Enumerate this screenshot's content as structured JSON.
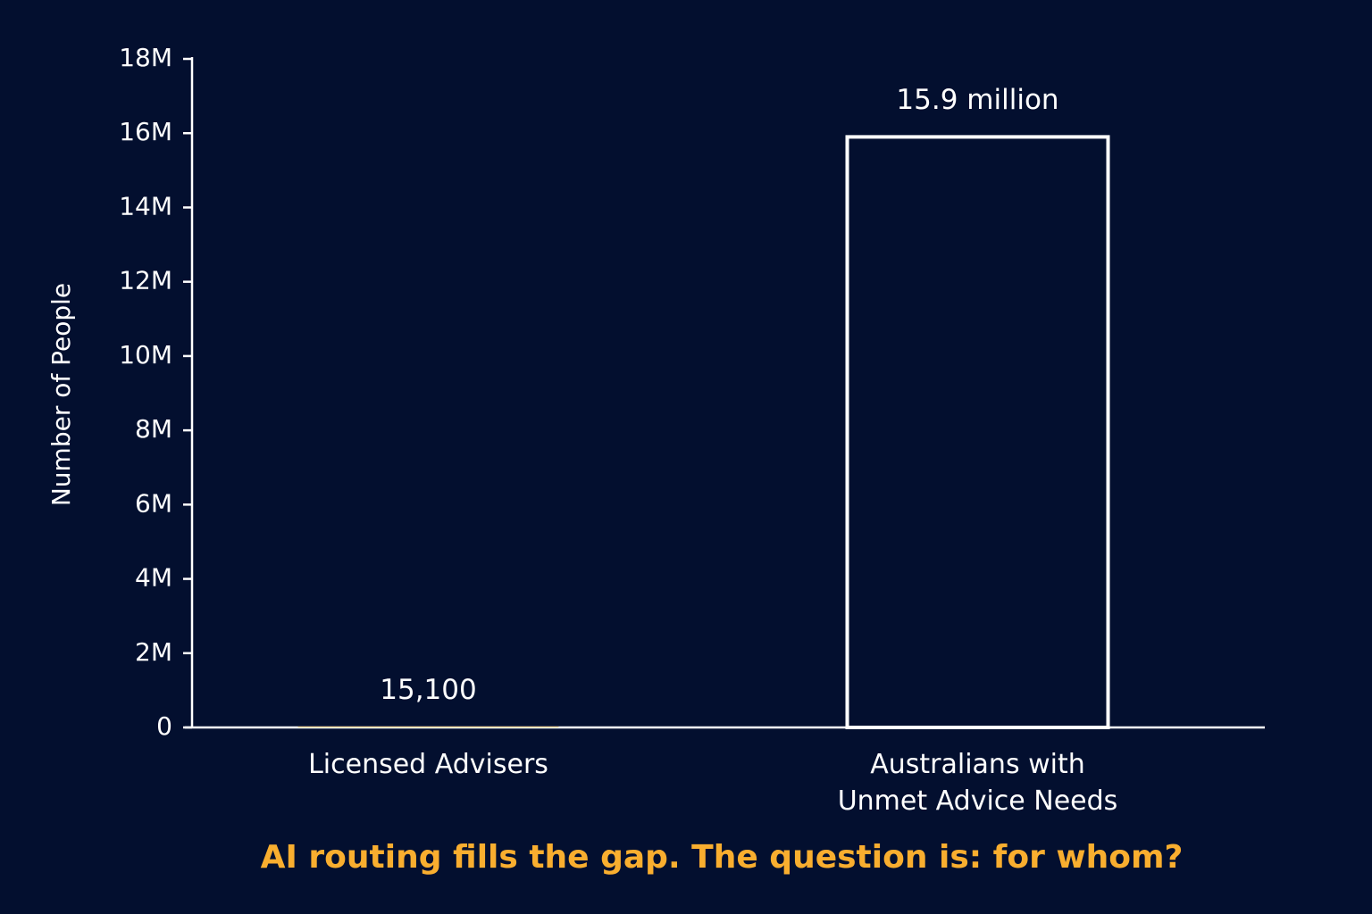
{
  "chart_data": {
    "type": "bar",
    "ylabel": "Number of People",
    "categories": [
      "Licensed Advisers",
      "Australians with\nUnmet Advice Needs"
    ],
    "values": [
      15100,
      15900000
    ],
    "value_labels": [
      "15,100",
      "15.9 million"
    ],
    "colors": [
      "#f9ae2f",
      "none"
    ],
    "edgecolors": [
      "none",
      "#ffffff"
    ],
    "ylim": [
      0,
      18000000
    ],
    "yticks": [
      0,
      {
        "value": 2000000,
        "label": "2M"
      },
      {
        "value": 4000000,
        "label": "4M"
      },
      {
        "value": 6000000,
        "label": "6M"
      },
      {
        "value": 8000000,
        "label": "8M"
      },
      {
        "value": 10000000,
        "label": "10M"
      },
      {
        "value": 12000000,
        "label": "12M"
      },
      {
        "value": 14000000,
        "label": "14M"
      },
      {
        "value": 16000000,
        "label": "16M"
      },
      {
        "value": 18000000,
        "label": "18M"
      }
    ],
    "grid": false,
    "caption": "AI routing fills the gap. The question is: for whom?",
    "caption_color": "#f9ae2f"
  }
}
